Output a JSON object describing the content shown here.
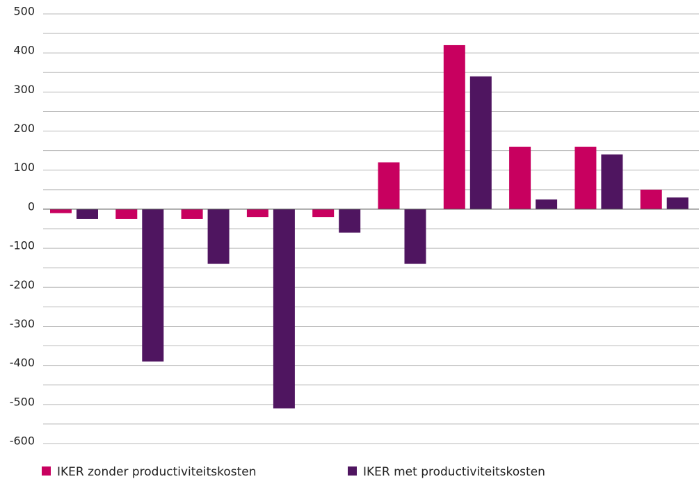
{
  "chart_data": {
    "type": "bar",
    "categories": [
      null,
      null,
      null,
      null,
      null,
      null,
      null,
      null,
      null,
      null
    ],
    "series": [
      {
        "name": "IKER zonder productiviteitskosten",
        "color": "#c8005f",
        "values": [
          -10,
          -25,
          -25,
          -20,
          -20,
          120,
          420,
          160,
          160,
          50
        ]
      },
      {
        "name": "IKER met productiviteitskosten",
        "color": "#4f1560",
        "values": [
          -25,
          -390,
          -140,
          -510,
          -60,
          -140,
          340,
          25,
          140,
          30
        ]
      }
    ],
    "ylim": [
      -600,
      500
    ],
    "yticks": [
      500,
      400,
      300,
      200,
      100,
      0,
      -100,
      -200,
      -300,
      -400,
      -500,
      -600
    ],
    "minor_yticks": [
      450,
      350,
      250,
      150,
      50,
      -50,
      -150,
      -250,
      -350,
      -450,
      -550
    ],
    "grid": true
  }
}
